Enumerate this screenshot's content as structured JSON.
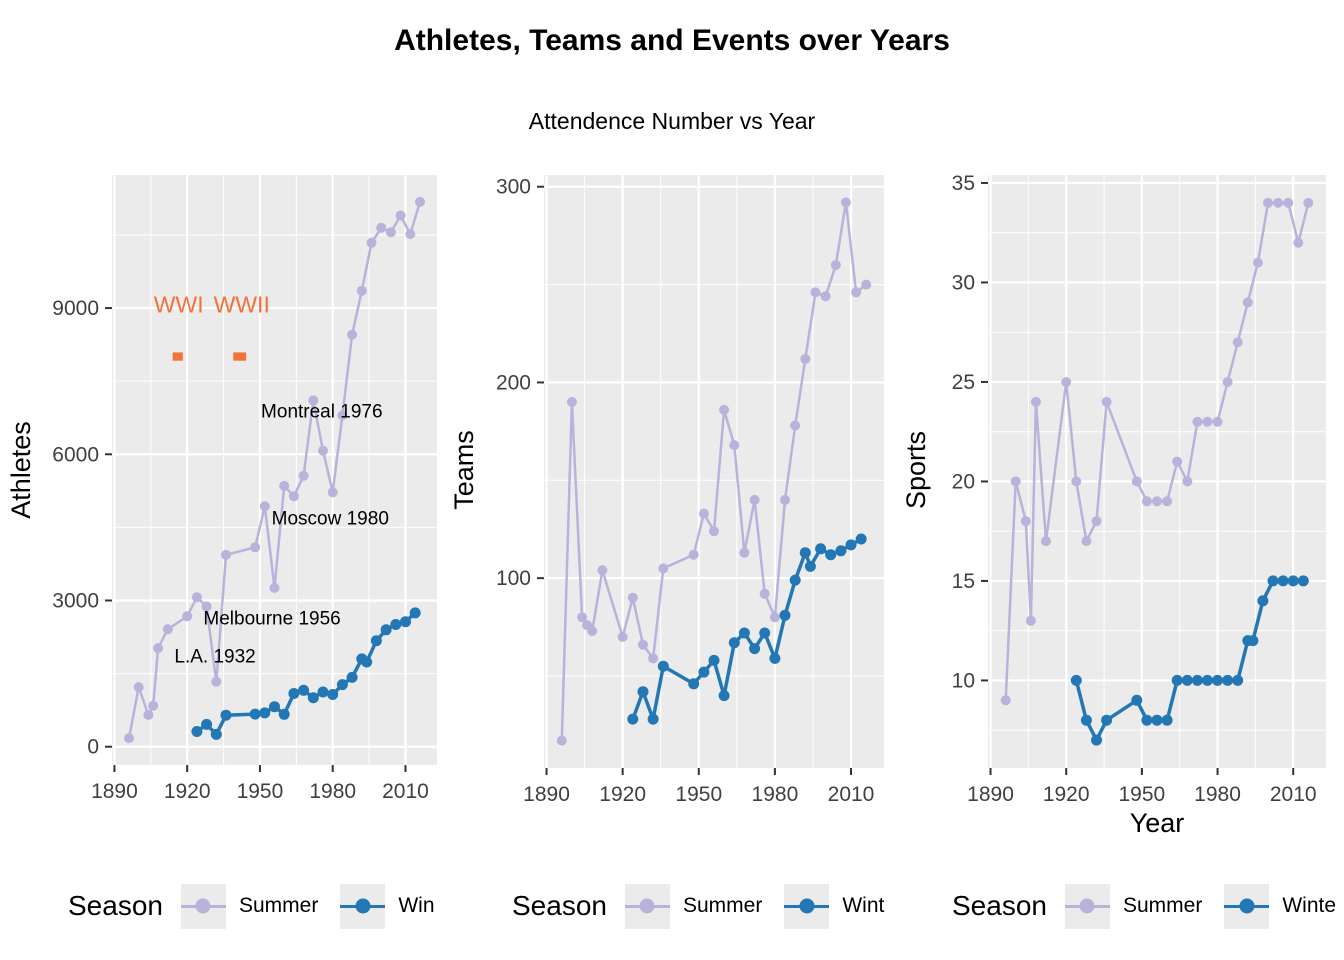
{
  "header": {
    "title": "Athletes, Teams and Events over Years",
    "subtitle": "Attendence Number vs Year"
  },
  "colors": {
    "summer": "#b9b2da",
    "winter": "#2377b4",
    "annotation": "#f5713a",
    "panel_bg": "#ebebeb",
    "grid": "#ffffff",
    "tick_text": "#404040",
    "text": "#000000"
  },
  "legends": [
    {
      "title": "Season",
      "items": [
        {
          "key": "summer",
          "label": "Summer"
        },
        {
          "key": "winter",
          "label": "Win"
        }
      ]
    },
    {
      "title": "Season",
      "items": [
        {
          "key": "summer",
          "label": "Summer"
        },
        {
          "key": "winter",
          "label": "Wint"
        }
      ]
    },
    {
      "title": "Season",
      "items": [
        {
          "key": "summer",
          "label": "Summer"
        },
        {
          "key": "winter",
          "label": "Winte"
        }
      ]
    }
  ],
  "chart_data": [
    {
      "name": "athletes",
      "type": "line",
      "ylabel": "Athletes",
      "xlabel": "",
      "xlim": [
        1889,
        2023
      ],
      "ylim": [
        -375,
        11730
      ],
      "x_ticks": [
        1890,
        1920,
        1950,
        1980,
        2010
      ],
      "y_ticks": [
        0,
        3000,
        6000,
        9000
      ],
      "series": [
        {
          "name": "Summer",
          "key": "summer",
          "x": [
            1896,
            1900,
            1904,
            1906,
            1908,
            1912,
            1920,
            1924,
            1928,
            1932,
            1936,
            1948,
            1952,
            1956,
            1960,
            1964,
            1968,
            1972,
            1976,
            1980,
            1984,
            1988,
            1992,
            1996,
            2000,
            2004,
            2008,
            2012,
            2016
          ],
          "y": [
            176,
            1224,
            650,
            841,
            2024,
            2409,
            2676,
            3067,
            2877,
            1332,
            3936,
            4092,
            4932,
            3258,
            5351,
            5137,
            5558,
            7105,
            6073,
            5217,
            6798,
            8453,
            9356,
            10339,
            10647,
            10557,
            10899,
            10517,
            11179
          ]
        },
        {
          "name": "Winter",
          "key": "winter",
          "x": [
            1924,
            1928,
            1932,
            1936,
            1948,
            1952,
            1956,
            1960,
            1964,
            1968,
            1972,
            1976,
            1980,
            1984,
            1988,
            1992,
            1994,
            1998,
            2002,
            2006,
            2010,
            2014
          ],
          "y": [
            313,
            459,
            252,
            646,
            669,
            694,
            821,
            665,
            1091,
            1158,
            1006,
            1123,
            1072,
            1274,
            1423,
            1801,
            1739,
            2176,
            2399,
            2508,
            2566,
            2745
          ]
        }
      ],
      "annotations": [
        {
          "kind": "text",
          "label": "WWI",
          "x": 1916.5,
          "y": 9050,
          "color": "annotation",
          "size": 23
        },
        {
          "kind": "text",
          "label": "WWII",
          "x": 1942.5,
          "y": 9050,
          "color": "annotation",
          "size": 23
        },
        {
          "kind": "rect",
          "x0": 1914,
          "x1": 1918.2,
          "y0": 7920,
          "y1": 8090,
          "color": "annotation"
        },
        {
          "kind": "rect",
          "x0": 1939,
          "x1": 1944.3,
          "y0": 7920,
          "y1": 8090,
          "color": "annotation"
        },
        {
          "kind": "text",
          "label": "Montreal 1976",
          "x": 1975.5,
          "y": 6900,
          "color": "text",
          "size": 19
        },
        {
          "kind": "text",
          "label": "Moscow 1980",
          "x": 1979,
          "y": 4700,
          "color": "text",
          "size": 19
        },
        {
          "kind": "text",
          "label": "Melbourne 1956",
          "x": 1955,
          "y": 2650,
          "color": "text",
          "size": 19
        },
        {
          "kind": "text",
          "label": "L.A. 1932",
          "x": 1931.5,
          "y": 1870,
          "color": "text",
          "size": 19
        }
      ]
    },
    {
      "name": "teams",
      "type": "line",
      "ylabel": "Teams",
      "xlabel": "",
      "xlim": [
        1889,
        2023
      ],
      "ylim": [
        3,
        306
      ],
      "x_ticks": [
        1890,
        1920,
        1950,
        1980,
        2010
      ],
      "y_ticks": [
        100,
        200,
        300
      ],
      "series": [
        {
          "name": "Summer",
          "key": "summer",
          "x": [
            1896,
            1900,
            1904,
            1906,
            1908,
            1912,
            1920,
            1924,
            1928,
            1932,
            1936,
            1948,
            1952,
            1956,
            1960,
            1964,
            1968,
            1972,
            1976,
            1980,
            1984,
            1988,
            1992,
            1996,
            2000,
            2004,
            2008,
            2012,
            2016
          ],
          "y": [
            17,
            190,
            80,
            76,
            73,
            104,
            70,
            90,
            66,
            59,
            105,
            112,
            133,
            124,
            186,
            168,
            113,
            140,
            92,
            80,
            140,
            178,
            212,
            246,
            244,
            260,
            292,
            246,
            250
          ]
        },
        {
          "name": "Winter",
          "key": "winter",
          "x": [
            1924,
            1928,
            1932,
            1936,
            1948,
            1952,
            1956,
            1960,
            1964,
            1968,
            1972,
            1976,
            1980,
            1984,
            1988,
            1992,
            1994,
            1998,
            2002,
            2006,
            2010,
            2014
          ],
          "y": [
            28,
            42,
            28,
            55,
            46,
            52,
            58,
            40,
            67,
            72,
            64,
            72,
            59,
            81,
            99,
            113,
            106,
            115,
            112,
            114,
            117,
            120
          ]
        }
      ],
      "annotations": []
    },
    {
      "name": "sports",
      "type": "line",
      "ylabel": "Sports",
      "xlabel": "Year",
      "xlim": [
        1889,
        2023
      ],
      "ylim": [
        5.6,
        35.4
      ],
      "x_ticks": [
        1890,
        1920,
        1950,
        1980,
        2010
      ],
      "y_ticks": [
        10,
        15,
        20,
        25,
        30,
        35
      ],
      "series": [
        {
          "name": "Summer",
          "key": "summer",
          "x": [
            1896,
            1900,
            1904,
            1906,
            1908,
            1912,
            1920,
            1924,
            1928,
            1932,
            1936,
            1948,
            1952,
            1956,
            1960,
            1964,
            1968,
            1972,
            1976,
            1980,
            1984,
            1988,
            1992,
            1996,
            2000,
            2004,
            2008,
            2012,
            2016
          ],
          "y": [
            9,
            20,
            18,
            13,
            24,
            17,
            25,
            20,
            17,
            18,
            24,
            20,
            19,
            19,
            19,
            21,
            20,
            23,
            23,
            23,
            25,
            27,
            29,
            31,
            34,
            34,
            34,
            32,
            34
          ]
        },
        {
          "name": "Winter",
          "key": "winter",
          "x": [
            1924,
            1928,
            1932,
            1936,
            1948,
            1952,
            1956,
            1960,
            1964,
            1968,
            1972,
            1976,
            1980,
            1984,
            1988,
            1992,
            1994,
            1998,
            2002,
            2006,
            2010,
            2014
          ],
          "y": [
            10,
            8,
            7,
            8,
            9,
            8,
            8,
            8,
            10,
            10,
            10,
            10,
            10,
            10,
            10,
            12,
            12,
            14,
            15,
            15,
            15,
            15
          ]
        }
      ],
      "annotations": []
    }
  ]
}
